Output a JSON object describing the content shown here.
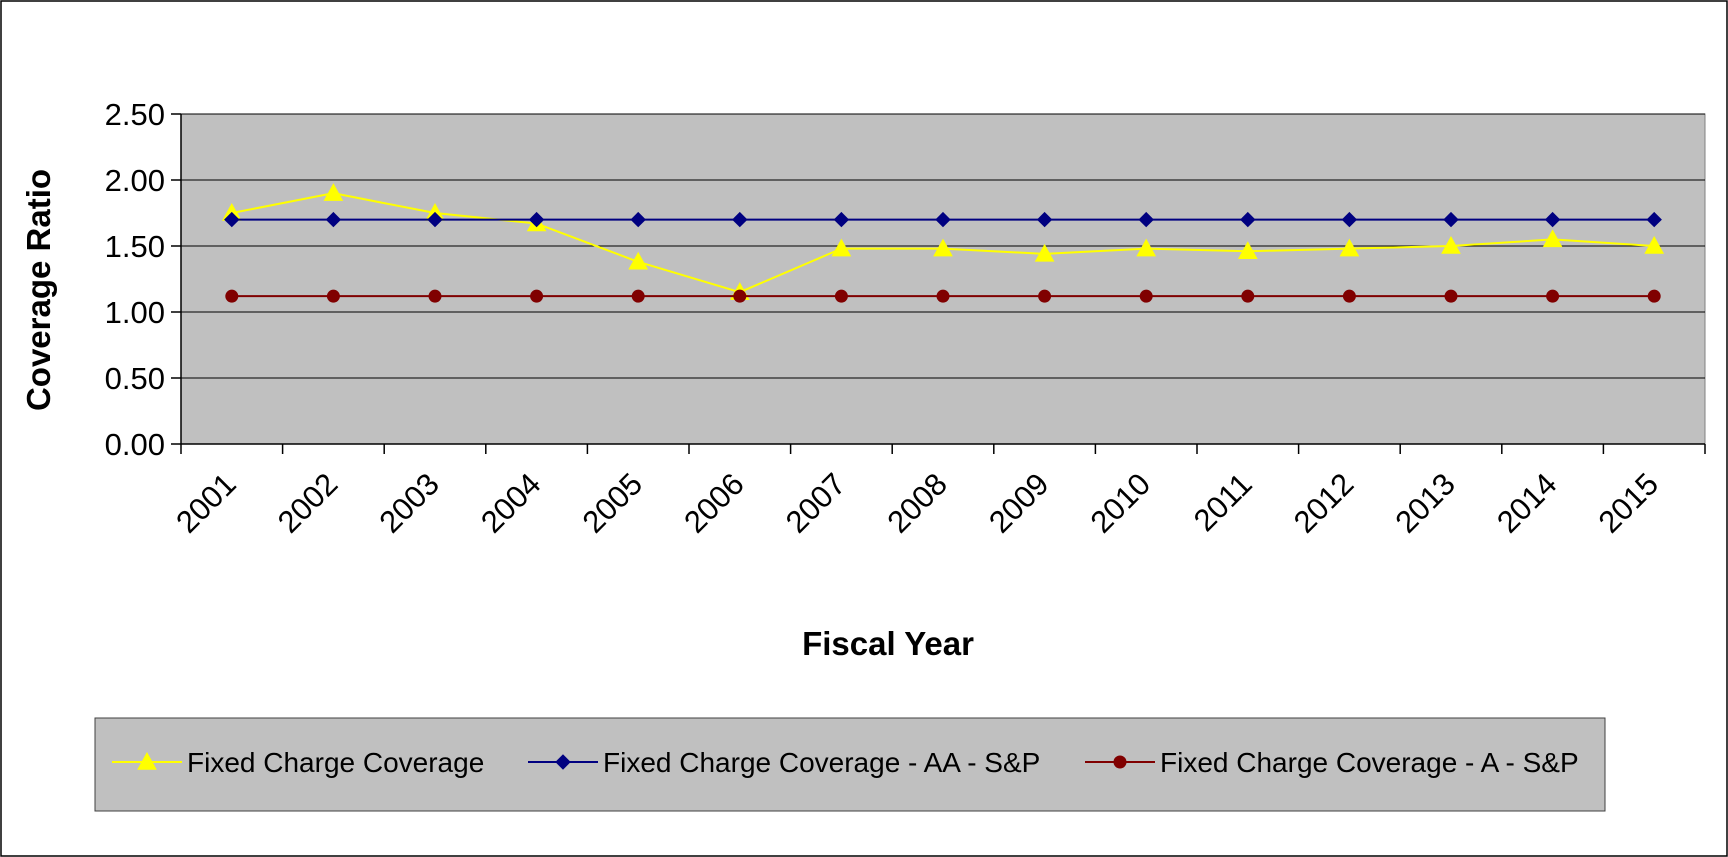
{
  "chart_data": {
    "type": "line",
    "title": "",
    "xlabel": "Fiscal Year",
    "ylabel": "Coverage Ratio",
    "ylim": [
      0,
      2.5
    ],
    "ytick_labels": [
      "0.00",
      "0.50",
      "1.00",
      "1.50",
      "2.00",
      "2.50"
    ],
    "categories": [
      "2001",
      "2002",
      "2003",
      "2004",
      "2005",
      "2006",
      "2007",
      "2008",
      "2009",
      "2010",
      "2011",
      "2012",
      "2013",
      "2014",
      "2015"
    ],
    "grid": true,
    "legend_position": "bottom",
    "plot_background": "#c0c0c0",
    "legend_background": "#c0c0c0",
    "series": [
      {
        "name": "Fixed Charge Coverage",
        "color": "#ffff00",
        "marker": "triangle",
        "values": [
          1.75,
          1.9,
          1.75,
          1.67,
          1.38,
          1.15,
          1.48,
          1.48,
          1.44,
          1.48,
          1.46,
          1.48,
          1.5,
          1.55,
          1.5
        ]
      },
      {
        "name": "Fixed Charge Coverage - AA - S&P",
        "color": "#000080",
        "marker": "diamond",
        "values": [
          1.7,
          1.7,
          1.7,
          1.7,
          1.7,
          1.7,
          1.7,
          1.7,
          1.7,
          1.7,
          1.7,
          1.7,
          1.7,
          1.7,
          1.7
        ]
      },
      {
        "name": "Fixed Charge Coverage - A - S&P",
        "color": "#800000",
        "marker": "circle",
        "values": [
          1.12,
          1.12,
          1.12,
          1.12,
          1.12,
          1.12,
          1.12,
          1.12,
          1.12,
          1.12,
          1.12,
          1.12,
          1.12,
          1.12,
          1.12
        ]
      }
    ]
  }
}
